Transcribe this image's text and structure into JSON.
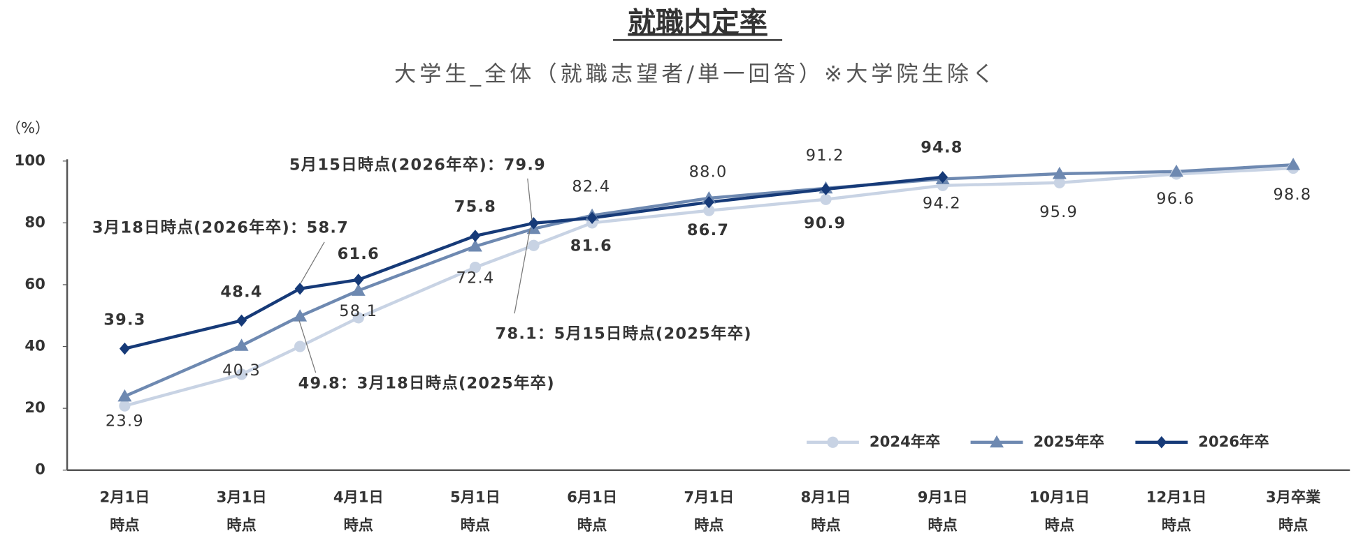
{
  "chart_data": {
    "type": "line",
    "title": "就職内定率",
    "subtitle": "大学生_全体（就職志望者/単一回答）※大学院生除く",
    "y_label": "（%）",
    "categories": [
      [
        "2月1日",
        "時点"
      ],
      [
        "3月1日",
        "時点"
      ],
      null,
      [
        "4月1日",
        "時点"
      ],
      [
        "5月1日",
        "時点"
      ],
      null,
      [
        "6月1日",
        "時点"
      ],
      [
        "7月1日",
        "時点"
      ],
      [
        "8月1日",
        "時点"
      ],
      [
        "9月1日",
        "時点"
      ],
      [
        "10月1日",
        "時点"
      ],
      [
        "12月1日",
        "時点"
      ],
      [
        "3月卒業",
        "時点"
      ]
    ],
    "series": [
      {
        "name": "2024年卒",
        "color": "#c8d3e4",
        "marker": "circle",
        "values": [
          20.8,
          31,
          40,
          49.3,
          65.6,
          72.7,
          80,
          84,
          87.6,
          92.1,
          93,
          95.8,
          97.7
        ]
      },
      {
        "name": "2025年卒",
        "color": "#6e89b1",
        "marker": "triangle",
        "values": [
          23.9,
          40.3,
          49.8,
          58.1,
          72.4,
          78.1,
          82.4,
          88.0,
          91.2,
          94.2,
          95.9,
          96.6,
          98.8
        ],
        "value_labels": [
          "23.9",
          "40.3",
          "49.8：3月18日時点(2025年卒)",
          "58.1",
          "72.4",
          "78.1：5月15日時点(2025年卒)",
          "82.4",
          "88.0",
          "91.2",
          "94.2",
          "95.9",
          "96.6",
          "98.8"
        ]
      },
      {
        "name": "2026年卒",
        "color": "#163a78",
        "marker": "diamond",
        "values": [
          39.3,
          48.4,
          58.7,
          61.6,
          75.8,
          79.9,
          81.6,
          86.7,
          90.9,
          94.8,
          null,
          null,
          null
        ],
        "value_labels": [
          "39.3",
          "48.4",
          "3月18日時点(2026年卒)：58.7",
          "61.6",
          "75.8",
          "5月15日時点(2026年卒)：79.9",
          "81.6",
          "86.7",
          "90.9",
          "94.8",
          null,
          null,
          null
        ]
      }
    ],
    "ylim": [
      0,
      100
    ],
    "yticks": [
      0,
      20,
      40,
      60,
      80,
      100
    ],
    "grid": false,
    "legend": "lower right"
  }
}
